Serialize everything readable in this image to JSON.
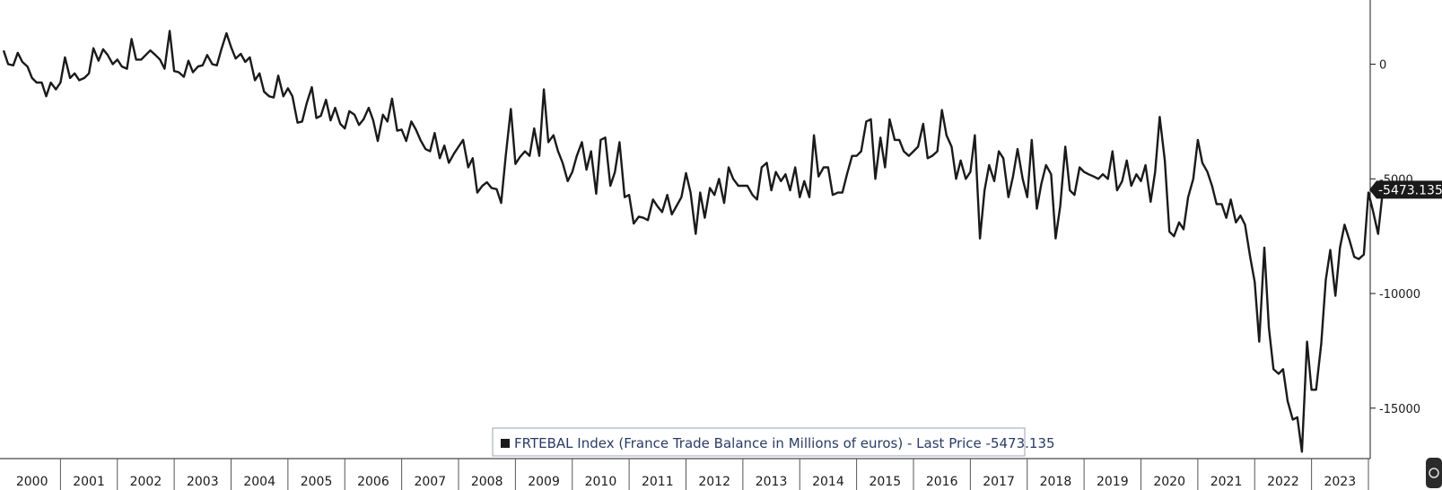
{
  "chart_data": {
    "type": "line",
    "ylim": [
      -17200,
      2800
    ],
    "yticks": [
      0,
      -5000,
      -10000,
      -15000
    ],
    "ytick_labels": [
      "0",
      "-5000",
      "-10000",
      "-15000"
    ],
    "xlim": [
      2000.0,
      2024.0
    ],
    "x_tick_labels": [
      "2000",
      "2001",
      "2002",
      "2003",
      "2004",
      "2005",
      "2006",
      "2007",
      "2008",
      "2009",
      "2010",
      "2011",
      "2012",
      "2013",
      "2014",
      "2015",
      "2016",
      "2017",
      "2018",
      "2019",
      "2020",
      "2021",
      "2022",
      "2023"
    ],
    "grid": false,
    "legend": {
      "placement": "bottom-center",
      "text": "FRTEBAL Index (France Trade Balance in Millions of euros) - Last Price -5473.135"
    },
    "last_price_label": "-5473.135",
    "series": [
      {
        "color": "#1a1a1a",
        "points": [
          [
            2000.0,
            600
          ],
          [
            2000.08,
            0
          ],
          [
            2000.17,
            -50
          ],
          [
            2000.25,
            500
          ],
          [
            2000.33,
            100
          ],
          [
            2000.42,
            -100
          ],
          [
            2000.5,
            -600
          ],
          [
            2000.58,
            -800
          ],
          [
            2000.67,
            -800
          ],
          [
            2000.75,
            -1400
          ],
          [
            2000.83,
            -800
          ],
          [
            2000.92,
            -1100
          ],
          [
            2001.0,
            -800
          ],
          [
            2001.08,
            300
          ],
          [
            2001.17,
            -600
          ],
          [
            2001.25,
            -400
          ],
          [
            2001.33,
            -700
          ],
          [
            2001.42,
            -600
          ],
          [
            2001.5,
            -400
          ],
          [
            2001.58,
            700
          ],
          [
            2001.67,
            150
          ],
          [
            2001.75,
            650
          ],
          [
            2001.83,
            400
          ],
          [
            2001.92,
            0
          ],
          [
            2002.0,
            200
          ],
          [
            2002.08,
            -100
          ],
          [
            2002.17,
            -200
          ],
          [
            2002.25,
            1100
          ],
          [
            2002.33,
            200
          ],
          [
            2002.42,
            200
          ],
          [
            2002.5,
            400
          ],
          [
            2002.58,
            600
          ],
          [
            2002.67,
            400
          ],
          [
            2002.75,
            200
          ],
          [
            2002.83,
            -200
          ],
          [
            2002.92,
            1450
          ],
          [
            2003.0,
            -300
          ],
          [
            2003.08,
            -350
          ],
          [
            2003.17,
            -550
          ],
          [
            2003.25,
            150
          ],
          [
            2003.33,
            -350
          ],
          [
            2003.42,
            -100
          ],
          [
            2003.5,
            -50
          ],
          [
            2003.58,
            400
          ],
          [
            2003.67,
            0
          ],
          [
            2003.75,
            -50
          ],
          [
            2003.83,
            650
          ],
          [
            2003.92,
            1350
          ],
          [
            2004.0,
            750
          ],
          [
            2004.08,
            250
          ],
          [
            2004.17,
            450
          ],
          [
            2004.25,
            100
          ],
          [
            2004.33,
            300
          ],
          [
            2004.42,
            -700
          ],
          [
            2004.5,
            -400
          ],
          [
            2004.58,
            -1200
          ],
          [
            2004.67,
            -1400
          ],
          [
            2004.75,
            -1450
          ],
          [
            2004.83,
            -500
          ],
          [
            2004.92,
            -1400
          ],
          [
            2005.0,
            -1050
          ],
          [
            2005.08,
            -1400
          ],
          [
            2005.17,
            -2550
          ],
          [
            2005.25,
            -2500
          ],
          [
            2005.33,
            -1700
          ],
          [
            2005.42,
            -1000
          ],
          [
            2005.5,
            -2350
          ],
          [
            2005.58,
            -2250
          ],
          [
            2005.67,
            -1550
          ],
          [
            2005.75,
            -2450
          ],
          [
            2005.83,
            -1900
          ],
          [
            2005.92,
            -2600
          ],
          [
            2006.0,
            -2800
          ],
          [
            2006.08,
            -2050
          ],
          [
            2006.17,
            -2200
          ],
          [
            2006.25,
            -2650
          ],
          [
            2006.33,
            -2400
          ],
          [
            2006.42,
            -1900
          ],
          [
            2006.5,
            -2450
          ],
          [
            2006.58,
            -3350
          ],
          [
            2006.67,
            -2200
          ],
          [
            2006.75,
            -2500
          ],
          [
            2006.83,
            -1500
          ],
          [
            2006.92,
            -2900
          ],
          [
            2007.0,
            -2850
          ],
          [
            2007.08,
            -3350
          ],
          [
            2007.17,
            -2500
          ],
          [
            2007.25,
            -2850
          ],
          [
            2007.33,
            -3300
          ],
          [
            2007.42,
            -3700
          ],
          [
            2007.5,
            -3800
          ],
          [
            2007.58,
            -3000
          ],
          [
            2007.67,
            -4100
          ],
          [
            2007.75,
            -3550
          ],
          [
            2007.83,
            -4300
          ],
          [
            2007.92,
            -3900
          ],
          [
            2008.0,
            -3600
          ],
          [
            2008.08,
            -3300
          ],
          [
            2008.17,
            -4500
          ],
          [
            2008.25,
            -4100
          ],
          [
            2008.33,
            -5600
          ],
          [
            2008.42,
            -5300
          ],
          [
            2008.5,
            -5150
          ],
          [
            2008.58,
            -5400
          ],
          [
            2008.67,
            -5450
          ],
          [
            2008.75,
            -6050
          ],
          [
            2008.83,
            -4000
          ],
          [
            2008.92,
            -1950
          ],
          [
            2009.0,
            -4350
          ],
          [
            2009.08,
            -4050
          ],
          [
            2009.17,
            -3800
          ],
          [
            2009.25,
            -4000
          ],
          [
            2009.33,
            -2800
          ],
          [
            2009.42,
            -4000
          ],
          [
            2009.5,
            -1100
          ],
          [
            2009.58,
            -3400
          ],
          [
            2009.67,
            -3100
          ],
          [
            2009.75,
            -3800
          ],
          [
            2009.83,
            -4300
          ],
          [
            2009.92,
            -5100
          ],
          [
            2010.0,
            -4700
          ],
          [
            2010.08,
            -4000
          ],
          [
            2010.17,
            -3400
          ],
          [
            2010.25,
            -4600
          ],
          [
            2010.33,
            -3800
          ],
          [
            2010.42,
            -5650
          ],
          [
            2010.5,
            -3300
          ],
          [
            2010.58,
            -3200
          ],
          [
            2010.67,
            -5300
          ],
          [
            2010.75,
            -4700
          ],
          [
            2010.83,
            -3400
          ],
          [
            2010.92,
            -5800
          ],
          [
            2011.0,
            -5700
          ],
          [
            2011.08,
            -6950
          ],
          [
            2011.17,
            -6650
          ],
          [
            2011.25,
            -6700
          ],
          [
            2011.33,
            -6800
          ],
          [
            2011.42,
            -5900
          ],
          [
            2011.5,
            -6200
          ],
          [
            2011.58,
            -6450
          ],
          [
            2011.67,
            -5700
          ],
          [
            2011.75,
            -6550
          ],
          [
            2011.83,
            -6200
          ],
          [
            2011.92,
            -5800
          ],
          [
            2012.0,
            -4750
          ],
          [
            2012.08,
            -5600
          ],
          [
            2012.17,
            -7400
          ],
          [
            2012.25,
            -5600
          ],
          [
            2012.33,
            -6700
          ],
          [
            2012.42,
            -5400
          ],
          [
            2012.5,
            -5700
          ],
          [
            2012.58,
            -5000
          ],
          [
            2012.67,
            -6050
          ],
          [
            2012.75,
            -4500
          ],
          [
            2012.83,
            -5000
          ],
          [
            2012.92,
            -5300
          ],
          [
            2013.0,
            -5300
          ],
          [
            2013.08,
            -5300
          ],
          [
            2013.17,
            -5700
          ],
          [
            2013.25,
            -5900
          ],
          [
            2013.33,
            -4500
          ],
          [
            2013.42,
            -4300
          ],
          [
            2013.5,
            -5500
          ],
          [
            2013.58,
            -4700
          ],
          [
            2013.67,
            -5100
          ],
          [
            2013.75,
            -4800
          ],
          [
            2013.83,
            -5500
          ],
          [
            2013.92,
            -4500
          ],
          [
            2014.0,
            -5800
          ],
          [
            2014.08,
            -5100
          ],
          [
            2014.17,
            -5800
          ],
          [
            2014.25,
            -3100
          ],
          [
            2014.33,
            -4900
          ],
          [
            2014.42,
            -4500
          ],
          [
            2014.5,
            -4500
          ],
          [
            2014.58,
            -5700
          ],
          [
            2014.67,
            -5600
          ],
          [
            2014.75,
            -5600
          ],
          [
            2014.83,
            -4800
          ],
          [
            2014.92,
            -4000
          ],
          [
            2015.0,
            -4000
          ],
          [
            2015.08,
            -3800
          ],
          [
            2015.17,
            -2500
          ],
          [
            2015.25,
            -2400
          ],
          [
            2015.33,
            -5000
          ],
          [
            2015.42,
            -3200
          ],
          [
            2015.5,
            -4500
          ],
          [
            2015.58,
            -2400
          ],
          [
            2015.67,
            -3300
          ],
          [
            2015.75,
            -3300
          ],
          [
            2015.83,
            -3800
          ],
          [
            2015.92,
            -4000
          ],
          [
            2016.0,
            -3800
          ],
          [
            2016.08,
            -3600
          ],
          [
            2016.17,
            -2600
          ],
          [
            2016.25,
            -4100
          ],
          [
            2016.33,
            -4000
          ],
          [
            2016.42,
            -3800
          ],
          [
            2016.5,
            -2000
          ],
          [
            2016.58,
            -3100
          ],
          [
            2016.67,
            -3600
          ],
          [
            2016.75,
            -5000
          ],
          [
            2016.83,
            -4200
          ],
          [
            2016.92,
            -5000
          ],
          [
            2017.0,
            -4700
          ],
          [
            2017.08,
            -3100
          ],
          [
            2017.17,
            -7600
          ],
          [
            2017.25,
            -5500
          ],
          [
            2017.33,
            -4400
          ],
          [
            2017.42,
            -5100
          ],
          [
            2017.5,
            -3800
          ],
          [
            2017.58,
            -4100
          ],
          [
            2017.67,
            -5800
          ],
          [
            2017.75,
            -4900
          ],
          [
            2017.83,
            -3700
          ],
          [
            2017.92,
            -5000
          ],
          [
            2018.0,
            -5800
          ],
          [
            2018.08,
            -3300
          ],
          [
            2018.17,
            -6300
          ],
          [
            2018.25,
            -5200
          ],
          [
            2018.33,
            -4400
          ],
          [
            2018.42,
            -4800
          ],
          [
            2018.5,
            -7600
          ],
          [
            2018.58,
            -6200
          ],
          [
            2018.67,
            -3600
          ],
          [
            2018.75,
            -5500
          ],
          [
            2018.83,
            -5700
          ],
          [
            2018.92,
            -4500
          ],
          [
            2019.0,
            -4700
          ],
          [
            2019.08,
            -4800
          ],
          [
            2019.17,
            -4900
          ],
          [
            2019.25,
            -5000
          ],
          [
            2019.33,
            -4800
          ],
          [
            2019.42,
            -5000
          ],
          [
            2019.5,
            -3800
          ],
          [
            2019.58,
            -5500
          ],
          [
            2019.67,
            -5100
          ],
          [
            2019.75,
            -4200
          ],
          [
            2019.83,
            -5300
          ],
          [
            2019.92,
            -4800
          ],
          [
            2020.0,
            -5100
          ],
          [
            2020.08,
            -4400
          ],
          [
            2020.17,
            -6000
          ],
          [
            2020.25,
            -4700
          ],
          [
            2020.33,
            -2300
          ],
          [
            2020.42,
            -4200
          ],
          [
            2020.5,
            -7300
          ],
          [
            2020.58,
            -7500
          ],
          [
            2020.67,
            -6900
          ],
          [
            2020.75,
            -7200
          ],
          [
            2020.83,
            -5800
          ],
          [
            2020.92,
            -5000
          ],
          [
            2021.0,
            -3300
          ],
          [
            2021.08,
            -4300
          ],
          [
            2021.17,
            -4700
          ],
          [
            2021.25,
            -5300
          ],
          [
            2021.33,
            -6100
          ],
          [
            2021.42,
            -6100
          ],
          [
            2021.5,
            -6700
          ],
          [
            2021.58,
            -5900
          ],
          [
            2021.67,
            -6900
          ],
          [
            2021.75,
            -6600
          ],
          [
            2021.83,
            -7000
          ],
          [
            2021.92,
            -8400
          ],
          [
            2022.0,
            -9500
          ],
          [
            2022.08,
            -12100
          ],
          [
            2022.17,
            -8000
          ],
          [
            2022.25,
            -11500
          ],
          [
            2022.33,
            -13300
          ],
          [
            2022.42,
            -13500
          ],
          [
            2022.5,
            -13300
          ],
          [
            2022.58,
            -14700
          ],
          [
            2022.67,
            -15500
          ],
          [
            2022.75,
            -15400
          ],
          [
            2022.83,
            -16900
          ],
          [
            2022.92,
            -12100
          ],
          [
            2023.0,
            -14200
          ],
          [
            2023.08,
            -14200
          ],
          [
            2023.17,
            -12200
          ],
          [
            2023.25,
            -9400
          ],
          [
            2023.33,
            -8100
          ],
          [
            2023.42,
            -10100
          ],
          [
            2023.5,
            -8000
          ],
          [
            2023.58,
            -7000
          ],
          [
            2023.67,
            -7700
          ],
          [
            2023.75,
            -8400
          ],
          [
            2023.83,
            -8500
          ],
          [
            2023.92,
            -8300
          ],
          [
            2024.0,
            -5600
          ],
          [
            2024.08,
            -6400
          ],
          [
            2024.17,
            -7400
          ],
          [
            2024.25,
            -5600
          ],
          [
            2024.33,
            -5473
          ]
        ]
      }
    ]
  }
}
